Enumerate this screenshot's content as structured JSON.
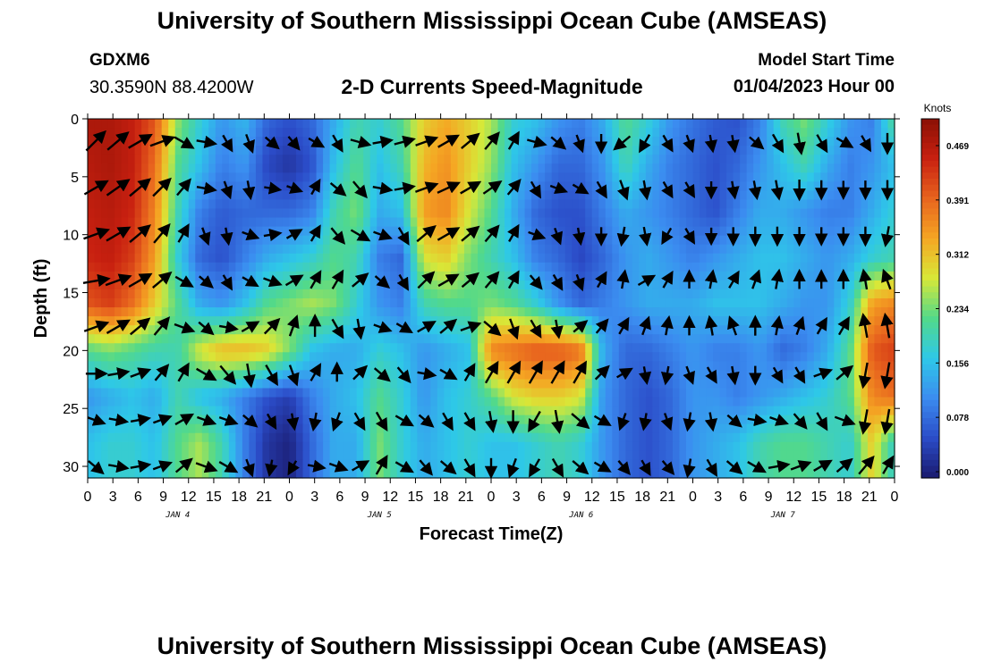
{
  "header": {
    "title": "University of Southern Mississippi Ocean Cube (AMSEAS)",
    "station_id": "GDXM6",
    "station_coords": "30.3590N  88.4200W",
    "plot_title": "2-D Currents Speed-Magnitude",
    "model_start_label": "Model Start Time",
    "model_start_value": "01/04/2023 Hour 00"
  },
  "footer": {
    "title": "University of Southern Mississippi Ocean Cube (AMSEAS)"
  },
  "chart_data": {
    "type": "heatmap",
    "title": "2-D Currents Speed-Magnitude",
    "xlabel": "Forecast Time(Z)",
    "ylabel": "Depth (ft)",
    "x_tick_labels": [
      "0",
      "3",
      "6",
      "9",
      "12",
      "15",
      "18",
      "21",
      "0",
      "3",
      "6",
      "9",
      "12",
      "15",
      "18",
      "21",
      "0",
      "3",
      "6",
      "9",
      "12",
      "15",
      "18",
      "21",
      "0",
      "3",
      "6",
      "9",
      "12",
      "15",
      "18",
      "21",
      "0"
    ],
    "x_day_labels": [
      {
        "label": "JAN 4",
        "hour": 12
      },
      {
        "label": "JAN 5",
        "hour": 36
      },
      {
        "label": "JAN 6",
        "hour": 60
      },
      {
        "label": "JAN 7",
        "hour": 84
      }
    ],
    "xlim_hours": [
      0,
      96
    ],
    "y_ticks": [
      0,
      5,
      10,
      15,
      20,
      25,
      30
    ],
    "ylim_ft": [
      0,
      31
    ],
    "y_inverted": true,
    "colorbar": {
      "unit": "Knots",
      "ticks": [
        "0.469",
        "0.391",
        "0.312",
        "0.234",
        "0.156",
        "0.078",
        "0.000"
      ],
      "min": 0.0,
      "max": 0.5,
      "colors": [
        "#1a1a6e",
        "#2b4cc8",
        "#3b8cf0",
        "#2ec8e8",
        "#52d98a",
        "#d8e838",
        "#f5a623",
        "#e8641e",
        "#c82010",
        "#8a1005"
      ]
    },
    "depth_levels_ft": [
      0,
      4,
      8,
      12,
      16,
      20,
      24,
      28
    ],
    "speed_knots": [
      [
        0.47,
        0.47,
        0.45,
        0.4,
        0.25,
        0.18,
        0.12,
        0.15,
        0.08,
        0.06,
        0.08,
        0.14,
        0.2,
        0.18,
        0.22,
        0.3,
        0.33,
        0.3,
        0.26,
        0.18,
        0.16,
        0.12,
        0.1,
        0.14,
        0.22,
        0.18,
        0.12,
        0.09,
        0.07,
        0.06,
        0.1,
        0.2,
        0.24,
        0.18,
        0.12,
        0.1,
        0.22
      ],
      [
        0.46,
        0.47,
        0.45,
        0.38,
        0.22,
        0.16,
        0.1,
        0.12,
        0.05,
        0.03,
        0.06,
        0.16,
        0.22,
        0.16,
        0.2,
        0.32,
        0.35,
        0.3,
        0.25,
        0.16,
        0.12,
        0.08,
        0.08,
        0.12,
        0.2,
        0.14,
        0.1,
        0.08,
        0.06,
        0.08,
        0.12,
        0.16,
        0.2,
        0.14,
        0.1,
        0.12,
        0.16
      ],
      [
        0.45,
        0.46,
        0.44,
        0.36,
        0.2,
        0.1,
        0.07,
        0.08,
        0.08,
        0.08,
        0.1,
        0.2,
        0.24,
        0.14,
        0.16,
        0.34,
        0.36,
        0.28,
        0.22,
        0.14,
        0.08,
        0.06,
        0.06,
        0.1,
        0.14,
        0.12,
        0.1,
        0.08,
        0.06,
        0.1,
        0.14,
        0.14,
        0.12,
        0.1,
        0.1,
        0.14,
        0.18
      ],
      [
        0.44,
        0.45,
        0.42,
        0.34,
        0.18,
        0.08,
        0.06,
        0.1,
        0.14,
        0.16,
        0.18,
        0.22,
        0.2,
        0.1,
        0.08,
        0.28,
        0.3,
        0.24,
        0.2,
        0.16,
        0.1,
        0.08,
        0.05,
        0.08,
        0.12,
        0.14,
        0.12,
        0.1,
        0.12,
        0.14,
        0.16,
        0.16,
        0.14,
        0.12,
        0.14,
        0.18,
        0.2
      ],
      [
        0.4,
        0.42,
        0.38,
        0.3,
        0.22,
        0.14,
        0.12,
        0.16,
        0.22,
        0.24,
        0.26,
        0.24,
        0.18,
        0.12,
        0.1,
        0.2,
        0.22,
        0.22,
        0.24,
        0.22,
        0.18,
        0.12,
        0.08,
        0.1,
        0.12,
        0.14,
        0.14,
        0.14,
        0.16,
        0.16,
        0.16,
        0.14,
        0.12,
        0.12,
        0.18,
        0.34,
        0.36
      ],
      [
        0.22,
        0.24,
        0.22,
        0.2,
        0.2,
        0.28,
        0.32,
        0.32,
        0.3,
        0.24,
        0.16,
        0.14,
        0.14,
        0.18,
        0.16,
        0.12,
        0.14,
        0.16,
        0.36,
        0.38,
        0.4,
        0.4,
        0.38,
        0.14,
        0.08,
        0.08,
        0.1,
        0.12,
        0.1,
        0.1,
        0.12,
        0.08,
        0.1,
        0.14,
        0.22,
        0.4,
        0.42
      ],
      [
        0.12,
        0.14,
        0.16,
        0.14,
        0.2,
        0.16,
        0.14,
        0.1,
        0.06,
        0.04,
        0.1,
        0.14,
        0.16,
        0.22,
        0.18,
        0.12,
        0.16,
        0.18,
        0.22,
        0.28,
        0.3,
        0.3,
        0.28,
        0.12,
        0.08,
        0.06,
        0.08,
        0.12,
        0.12,
        0.1,
        0.12,
        0.14,
        0.16,
        0.18,
        0.22,
        0.36,
        0.38
      ],
      [
        0.16,
        0.18,
        0.18,
        0.16,
        0.22,
        0.26,
        0.2,
        0.1,
        0.03,
        0.01,
        0.08,
        0.14,
        0.14,
        0.24,
        0.18,
        0.14,
        0.16,
        0.18,
        0.16,
        0.16,
        0.18,
        0.2,
        0.18,
        0.12,
        0.08,
        0.06,
        0.08,
        0.12,
        0.14,
        0.16,
        0.2,
        0.22,
        0.22,
        0.2,
        0.18,
        0.3,
        0.18
      ]
    ],
    "vectors": [
      [
        45,
        40,
        30,
        20,
        -30,
        -10,
        -60,
        -70,
        -40,
        -50,
        -30,
        -60,
        -15,
        10,
        15,
        20,
        30,
        40,
        50,
        60,
        -15,
        -40,
        -70,
        -90,
        -140,
        -120,
        -60,
        -70,
        -80,
        -80,
        -40,
        -60,
        -80,
        -60,
        -30,
        -60,
        -90
      ],
      [
        30,
        35,
        40,
        45,
        50,
        -10,
        -70,
        -80,
        -10,
        -20,
        60,
        -40,
        -50,
        -10,
        10,
        20,
        25,
        30,
        35,
        50,
        -60,
        -20,
        -30,
        -60,
        -70,
        -80,
        -60,
        -60,
        -90,
        -80,
        -80,
        -80,
        -90,
        -90,
        -90,
        -90,
        -90
      ],
      [
        20,
        30,
        40,
        50,
        60,
        -70,
        -80,
        -20,
        10,
        30,
        60,
        -50,
        -30,
        -20,
        -60,
        40,
        30,
        40,
        50,
        60,
        -20,
        -70,
        -80,
        -90,
        -100,
        -80,
        -120,
        -60,
        -90,
        -90,
        -90,
        -90,
        -90,
        -90,
        -90,
        -90,
        -100
      ],
      [
        10,
        20,
        30,
        40,
        -30,
        -40,
        -60,
        -30,
        -20,
        30,
        60,
        60,
        40,
        -40,
        -60,
        45,
        30,
        40,
        50,
        60,
        -50,
        -60,
        -70,
        60,
        80,
        30,
        60,
        90,
        80,
        60,
        70,
        80,
        90,
        90,
        90,
        100,
        110
      ],
      [
        20,
        30,
        40,
        50,
        -20,
        -40,
        -10,
        30,
        45,
        70,
        90,
        -60,
        -80,
        -20,
        -30,
        30,
        40,
        20,
        -40,
        -70,
        -60,
        -80,
        40,
        50,
        60,
        70,
        80,
        90,
        100,
        110,
        90,
        80,
        70,
        60,
        60,
        100,
        100
      ],
      [
        0,
        10,
        20,
        50,
        60,
        -30,
        -50,
        -80,
        -60,
        -70,
        60,
        90,
        45,
        -40,
        -50,
        -10,
        -30,
        60,
        60,
        60,
        60,
        60,
        60,
        45,
        30,
        -80,
        -100,
        -70,
        -60,
        -80,
        -90,
        -60,
        -60,
        20,
        40,
        -100,
        -100
      ],
      [
        -20,
        -10,
        10,
        20,
        30,
        -20,
        -20,
        -40,
        -60,
        -80,
        -100,
        -110,
        -60,
        -60,
        -30,
        -40,
        -60,
        -60,
        -80,
        -90,
        -120,
        -80,
        -40,
        -30,
        -110,
        -100,
        -70,
        -100,
        -80,
        -40,
        -10,
        -20,
        -50,
        -60,
        -20,
        -100,
        -100
      ],
      [
        -40,
        -10,
        10,
        20,
        40,
        -20,
        -30,
        -70,
        -100,
        -120,
        -10,
        -20,
        30,
        60,
        -30,
        -50,
        -40,
        -60,
        -90,
        -110,
        -120,
        -60,
        -40,
        -30,
        -50,
        -60,
        -50,
        -100,
        -60,
        -40,
        -30,
        10,
        20,
        30,
        40,
        50,
        60
      ]
    ]
  }
}
